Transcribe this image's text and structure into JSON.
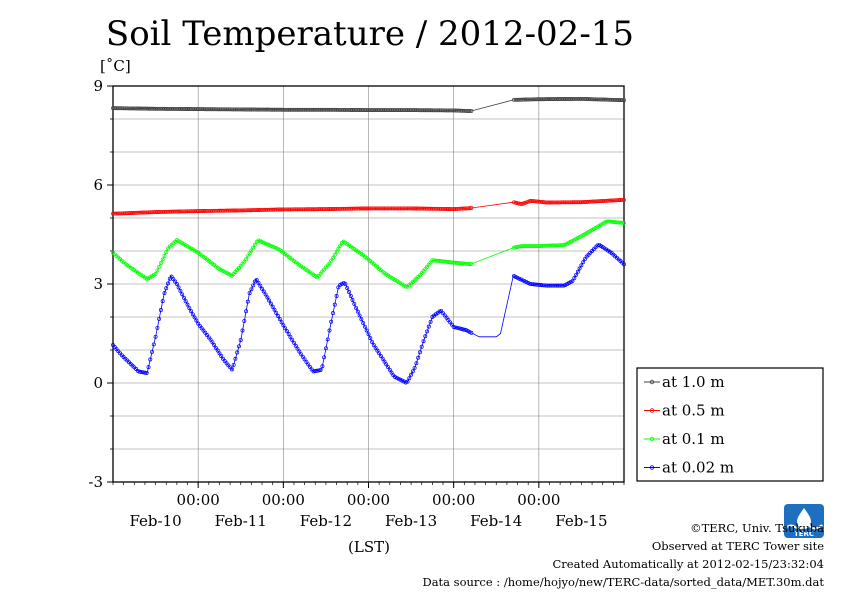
{
  "chart_data": {
    "type": "line",
    "title": "Soil Temperature / 2012-02-15",
    "ylabel_unit": "[˚C]",
    "xlabel": "(LST)",
    "ylim": [
      -3,
      9
    ],
    "xlim": [
      0,
      6
    ],
    "y_ticks": [
      "9",
      "6",
      "3",
      "0",
      "-3"
    ],
    "x_tick_times": [
      "00:00",
      "00:00",
      "00:00",
      "00:00",
      "00:00"
    ],
    "x_tick_dates": [
      "Feb-10",
      "Feb-11",
      "Feb-12",
      "Feb-13",
      "Feb-14",
      "Feb-15"
    ],
    "grid": true,
    "legend_position": "right",
    "series": [
      {
        "name": "at 1.0 m",
        "color": "#404040",
        "points": [
          [
            0,
            8.33
          ],
          [
            0.5,
            8.31
          ],
          [
            1,
            8.3
          ],
          [
            1.5,
            8.29
          ],
          [
            2,
            8.28
          ],
          [
            2.5,
            8.28
          ],
          [
            3,
            8.27
          ],
          [
            3.5,
            8.27
          ],
          [
            4.0,
            8.26
          ],
          [
            4.2,
            8.24
          ],
          [
            4.7,
            8.58
          ],
          [
            5.0,
            8.6
          ],
          [
            5.5,
            8.61
          ],
          [
            6.0,
            8.57
          ]
        ]
      },
      {
        "name": "at 0.5 m",
        "color": "#ff0000",
        "points": [
          [
            0,
            5.13
          ],
          [
            0.5,
            5.18
          ],
          [
            1,
            5.21
          ],
          [
            1.5,
            5.23
          ],
          [
            2,
            5.26
          ],
          [
            2.5,
            5.27
          ],
          [
            3,
            5.29
          ],
          [
            3.5,
            5.29
          ],
          [
            4.0,
            5.27
          ],
          [
            4.2,
            5.3
          ],
          [
            4.7,
            5.48
          ],
          [
            4.8,
            5.42
          ],
          [
            4.9,
            5.52
          ],
          [
            5.1,
            5.47
          ],
          [
            5.5,
            5.48
          ],
          [
            6.0,
            5.55
          ]
        ]
      },
      {
        "name": "at 0.1 m",
        "color": "#00ff00",
        "points": [
          [
            0,
            3.95
          ],
          [
            0.15,
            3.6
          ],
          [
            0.4,
            3.15
          ],
          [
            0.5,
            3.3
          ],
          [
            0.65,
            4.1
          ],
          [
            0.75,
            4.33
          ],
          [
            1.0,
            3.95
          ],
          [
            1.25,
            3.45
          ],
          [
            1.4,
            3.25
          ],
          [
            1.55,
            3.7
          ],
          [
            1.7,
            4.33
          ],
          [
            1.95,
            4.05
          ],
          [
            2.2,
            3.55
          ],
          [
            2.4,
            3.2
          ],
          [
            2.55,
            3.65
          ],
          [
            2.7,
            4.3
          ],
          [
            2.95,
            3.85
          ],
          [
            3.2,
            3.3
          ],
          [
            3.45,
            2.9
          ],
          [
            3.6,
            3.25
          ],
          [
            3.75,
            3.72
          ],
          [
            4.0,
            3.65
          ],
          [
            4.2,
            3.6
          ],
          [
            4.7,
            4.1
          ],
          [
            4.8,
            4.15
          ],
          [
            5.0,
            4.15
          ],
          [
            5.3,
            4.18
          ],
          [
            5.5,
            4.45
          ],
          [
            5.8,
            4.9
          ],
          [
            6.0,
            4.85
          ]
        ]
      },
      {
        "name": "at 0.02 m",
        "color": "#0000ff",
        "points": [
          [
            0,
            1.15
          ],
          [
            0.1,
            0.85
          ],
          [
            0.3,
            0.35
          ],
          [
            0.4,
            0.3
          ],
          [
            0.5,
            1.4
          ],
          [
            0.6,
            2.7
          ],
          [
            0.68,
            3.25
          ],
          [
            0.75,
            3.0
          ],
          [
            0.9,
            2.25
          ],
          [
            1.0,
            1.8
          ],
          [
            1.15,
            1.3
          ],
          [
            1.3,
            0.7
          ],
          [
            1.4,
            0.4
          ],
          [
            1.5,
            1.3
          ],
          [
            1.6,
            2.7
          ],
          [
            1.68,
            3.15
          ],
          [
            1.8,
            2.65
          ],
          [
            2.0,
            1.75
          ],
          [
            2.2,
            0.9
          ],
          [
            2.35,
            0.35
          ],
          [
            2.45,
            0.4
          ],
          [
            2.55,
            1.7
          ],
          [
            2.65,
            2.95
          ],
          [
            2.72,
            3.05
          ],
          [
            2.85,
            2.3
          ],
          [
            3.05,
            1.2
          ],
          [
            3.3,
            0.2
          ],
          [
            3.45,
            0.0
          ],
          [
            3.55,
            0.5
          ],
          [
            3.65,
            1.3
          ],
          [
            3.75,
            2.0
          ],
          [
            3.85,
            2.2
          ],
          [
            4.0,
            1.7
          ],
          [
            4.15,
            1.6
          ],
          [
            4.3,
            1.4
          ],
          [
            4.5,
            1.4
          ],
          [
            4.55,
            1.5
          ],
          [
            4.7,
            3.25
          ],
          [
            4.9,
            3.0
          ],
          [
            5.1,
            2.95
          ],
          [
            5.3,
            2.95
          ],
          [
            5.4,
            3.1
          ],
          [
            5.55,
            3.8
          ],
          [
            5.7,
            4.2
          ],
          [
            5.85,
            3.95
          ],
          [
            6.0,
            3.6
          ]
        ]
      }
    ]
  },
  "credits": {
    "line1": "©TERC, Univ. Tsukuba",
    "line2": "Observed at TERC Tower site",
    "line3": "Created Automatically at 2012-02-15/23:32:04",
    "line4": "Data source : /home/hojyo/new/TERC-data/sorted_data/MET.30m.dat"
  },
  "logo": {
    "name": "terc-logo",
    "text": "TERC",
    "color": "#1e6fc0"
  }
}
